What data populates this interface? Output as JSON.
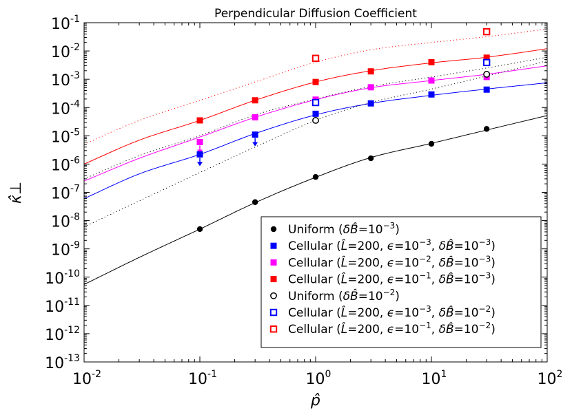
{
  "chart_data": {
    "type": "scatter",
    "title": "Perpendicular Diffusion Coefficient",
    "xlabel": "p̂",
    "ylabel": "κ̂⊥",
    "x_scale": "log",
    "y_scale": "log",
    "xlim": [
      0.01,
      100
    ],
    "ylim": [
      1e-13,
      0.1
    ],
    "x_ticks": [
      {
        "value": 0.01,
        "base": "10",
        "exp": "-2"
      },
      {
        "value": 0.1,
        "base": "10",
        "exp": "-1"
      },
      {
        "value": 1,
        "base": "10",
        "exp": "0"
      },
      {
        "value": 10,
        "base": "10",
        "exp": "1"
      },
      {
        "value": 100,
        "base": "10",
        "exp": "2"
      }
    ],
    "y_ticks": [
      {
        "value": 1e-13,
        "base": "10",
        "exp": "-13"
      },
      {
        "value": 1e-12,
        "base": "10",
        "exp": "-12"
      },
      {
        "value": 1e-11,
        "base": "10",
        "exp": "-11"
      },
      {
        "value": 1e-10,
        "base": "10",
        "exp": "-10"
      },
      {
        "value": 1e-09,
        "base": "10",
        "exp": "-9"
      },
      {
        "value": 1e-08,
        "base": "10",
        "exp": "-8"
      },
      {
        "value": 1e-07,
        "base": "10",
        "exp": "-7"
      },
      {
        "value": 1e-06,
        "base": "10",
        "exp": "-6"
      },
      {
        "value": 1e-05,
        "base": "10",
        "exp": "-5"
      },
      {
        "value": 0.0001,
        "base": "10",
        "exp": "-4"
      },
      {
        "value": 0.001,
        "base": "10",
        "exp": "-3"
      },
      {
        "value": 0.01,
        "base": "10",
        "exp": "-2"
      },
      {
        "value": 0.1,
        "base": "10",
        "exp": "-1"
      }
    ],
    "legend_position": "lower-right",
    "series": [
      {
        "name": "Uniform (δB̂=10⁻³)",
        "color": "#000000",
        "marker": "filled-circle",
        "x": [
          0.1,
          0.3,
          1,
          3,
          10,
          30
        ],
        "y": [
          5e-09,
          4.5e-08,
          3.5e-07,
          1.6e-06,
          5.2e-06,
          1.75e-05
        ]
      },
      {
        "name": "Cellular (L̂=200, ε=10⁻³, δB̂=10⁻³)",
        "color": "#0000ff",
        "marker": "filled-square",
        "x": [
          0.1,
          0.3,
          1,
          3,
          10,
          30
        ],
        "y": [
          2.2e-06,
          1.1e-05,
          6e-05,
          0.00014,
          0.00029,
          0.00043
        ]
      },
      {
        "name": "Cellular (L̂=200, ε=10⁻², δB̂=10⁻³)",
        "color": "#ff00ff",
        "marker": "filled-square",
        "x": [
          0.1,
          0.3,
          1,
          3,
          10,
          30
        ],
        "y": [
          6e-06,
          4.5e-05,
          0.00019,
          0.00052,
          0.0009,
          0.0012
        ]
      },
      {
        "name": "Cellular (L̂=200, ε=10⁻¹, δB̂=10⁻³)",
        "color": "#ff0000",
        "marker": "filled-square",
        "x": [
          0.1,
          0.3,
          1,
          3,
          10,
          30
        ],
        "y": [
          3.5e-05,
          0.00018,
          0.0008,
          0.0019,
          0.004,
          0.0058
        ]
      },
      {
        "name": "Uniform (δB̂=10⁻²)",
        "color": "#000000",
        "marker": "open-circle",
        "x": [
          1,
          30
        ],
        "y": [
          3.5e-05,
          0.0015
        ]
      },
      {
        "name": "Cellular (L̂=200, ε=10⁻³, δB̂=10⁻²)",
        "color": "#0000ff",
        "marker": "open-square",
        "x": [
          1,
          30
        ],
        "y": [
          0.00015,
          0.0039
        ]
      },
      {
        "name": "Cellular (L̂=200, ε=10⁻¹, δB̂=10⁻²)",
        "color": "#ff0000",
        "marker": "open-square",
        "x": [
          1,
          30
        ],
        "y": [
          0.0055,
          0.048
        ]
      }
    ],
    "fit_curves": [
      {
        "name": "uniform-1e-3-fit",
        "color": "#000000",
        "style": "solid",
        "x": [
          0.01,
          0.03,
          0.1,
          0.3,
          1,
          3,
          10,
          30,
          100
        ],
        "y": [
          5.5e-11,
          5e-10,
          5e-09,
          4.3e-08,
          3.4e-07,
          1.7e-06,
          5.4e-06,
          1.6e-05,
          5.2e-05
        ]
      },
      {
        "name": "cellular-e3-b3-fit",
        "color": "#0000ff",
        "style": "solid",
        "x": [
          0.01,
          0.03,
          0.1,
          0.3,
          1,
          3,
          10,
          30,
          100
        ],
        "y": [
          6e-08,
          4.5e-07,
          2.2e-06,
          1.2e-05,
          5.5e-05,
          0.00014,
          0.00027,
          0.00045,
          0.00075
        ]
      },
      {
        "name": "cellular-e2-b3-fit",
        "color": "#ff00ff",
        "style": "solid",
        "x": [
          0.01,
          0.03,
          0.1,
          0.3,
          1,
          3,
          10,
          30,
          100
        ],
        "y": [
          2.5e-07,
          1.6e-06,
          9e-06,
          4.5e-05,
          0.00019,
          0.0005,
          0.0009,
          0.0015,
          0.003
        ]
      },
      {
        "name": "cellular-e1-b3-fit",
        "color": "#ff0000",
        "style": "solid",
        "x": [
          0.01,
          0.03,
          0.1,
          0.3,
          1,
          3,
          10,
          30,
          100
        ],
        "y": [
          1e-06,
          7e-06,
          3.5e-05,
          0.00018,
          0.0008,
          0.002,
          0.0038,
          0.006,
          0.012
        ]
      },
      {
        "name": "uniform-1e-2-fit",
        "color": "#000000",
        "style": "dotted",
        "x": [
          0.01,
          0.03,
          0.1,
          0.3,
          1,
          3,
          10,
          30,
          100
        ],
        "y": [
          6e-09,
          5e-08,
          5e-07,
          4e-06,
          3.5e-05,
          0.00015,
          0.00045,
          0.0013,
          0.0045
        ]
      },
      {
        "name": "cellular-e3-b2-fit",
        "color": "#000000",
        "style": "dotted",
        "x": [
          0.01,
          0.03,
          0.1,
          0.3,
          1,
          3,
          10,
          30,
          100
        ],
        "y": [
          3e-07,
          2e-06,
          1e-05,
          5.5e-05,
          0.0002,
          0.00055,
          0.0012,
          0.0025,
          0.006
        ]
      },
      {
        "name": "cellular-e1-b2-fit",
        "color": "#ff0000",
        "style": "dotted",
        "x": [
          0.01,
          0.03,
          0.1,
          0.3,
          1,
          3,
          10,
          30,
          100
        ],
        "y": [
          5e-06,
          3.5e-05,
          0.00018,
          0.0008,
          0.004,
          0.011,
          0.02,
          0.032,
          0.06
        ]
      }
    ],
    "upper_limit_arrows": [
      {
        "color": "#0000ff",
        "x": 0.1,
        "y": 2.2e-06
      },
      {
        "color": "#0000ff",
        "x": 0.3,
        "y": 1.1e-05
      },
      {
        "color": "#ff00ff",
        "x": 0.1,
        "y": 6e-06
      }
    ],
    "legend": [
      {
        "marker": "filled-circle",
        "color": "#000000",
        "prefix": "Uniform (",
        "parts": [
          [
            "i",
            "δ"
          ],
          [
            "i",
            "B̂"
          ],
          [
            "n",
            "="
          ],
          [
            "n",
            "10"
          ],
          [
            "s",
            "−3"
          ],
          [
            "n",
            ")"
          ]
        ]
      },
      {
        "marker": "filled-square",
        "color": "#0000ff",
        "prefix": "Cellular (",
        "parts": [
          [
            "i",
            "L̂"
          ],
          [
            "n",
            "=200, "
          ],
          [
            "i",
            "ϵ"
          ],
          [
            "n",
            "="
          ],
          [
            "n",
            "10"
          ],
          [
            "s",
            "−3"
          ],
          [
            "n",
            ", "
          ],
          [
            "i",
            "δ"
          ],
          [
            "i",
            "B̂"
          ],
          [
            "n",
            "="
          ],
          [
            "n",
            "10"
          ],
          [
            "s",
            "−3"
          ],
          [
            "n",
            ")"
          ]
        ]
      },
      {
        "marker": "filled-square",
        "color": "#ff00ff",
        "prefix": "Cellular (",
        "parts": [
          [
            "i",
            "L̂"
          ],
          [
            "n",
            "=200, "
          ],
          [
            "i",
            "ϵ"
          ],
          [
            "n",
            "="
          ],
          [
            "n",
            "10"
          ],
          [
            "s",
            "−2"
          ],
          [
            "n",
            ", "
          ],
          [
            "i",
            "δ"
          ],
          [
            "i",
            "B̂"
          ],
          [
            "n",
            "="
          ],
          [
            "n",
            "10"
          ],
          [
            "s",
            "−3"
          ],
          [
            "n",
            ")"
          ]
        ]
      },
      {
        "marker": "filled-square",
        "color": "#ff0000",
        "prefix": "Cellular (",
        "parts": [
          [
            "i",
            "L̂"
          ],
          [
            "n",
            "=200, "
          ],
          [
            "i",
            "ϵ"
          ],
          [
            "n",
            "="
          ],
          [
            "n",
            "10"
          ],
          [
            "s",
            "−1"
          ],
          [
            "n",
            ", "
          ],
          [
            "i",
            "δ"
          ],
          [
            "i",
            "B̂"
          ],
          [
            "n",
            "="
          ],
          [
            "n",
            "10"
          ],
          [
            "s",
            "−3"
          ],
          [
            "n",
            ")"
          ]
        ]
      },
      {
        "marker": "open-circle",
        "color": "#000000",
        "prefix": "Uniform (",
        "parts": [
          [
            "i",
            "δ"
          ],
          [
            "i",
            "B̂"
          ],
          [
            "n",
            "="
          ],
          [
            "n",
            "10"
          ],
          [
            "s",
            "−2"
          ],
          [
            "n",
            ")"
          ]
        ]
      },
      {
        "marker": "open-square",
        "color": "#0000ff",
        "prefix": "Cellular (",
        "parts": [
          [
            "i",
            "L̂"
          ],
          [
            "n",
            "=200, "
          ],
          [
            "i",
            "ϵ"
          ],
          [
            "n",
            "="
          ],
          [
            "n",
            "10"
          ],
          [
            "s",
            "−3"
          ],
          [
            "n",
            ", "
          ],
          [
            "i",
            "δ"
          ],
          [
            "i",
            "B̂"
          ],
          [
            "n",
            "="
          ],
          [
            "n",
            "10"
          ],
          [
            "s",
            "−2"
          ],
          [
            "n",
            ")"
          ]
        ]
      },
      {
        "marker": "open-square",
        "color": "#ff0000",
        "prefix": "Cellular (",
        "parts": [
          [
            "i",
            "L̂"
          ],
          [
            "n",
            "=200, "
          ],
          [
            "i",
            "ϵ"
          ],
          [
            "n",
            "="
          ],
          [
            "n",
            "10"
          ],
          [
            "s",
            "−1"
          ],
          [
            "n",
            ", "
          ],
          [
            "i",
            "δ"
          ],
          [
            "i",
            "B̂"
          ],
          [
            "n",
            "="
          ],
          [
            "n",
            "10"
          ],
          [
            "s",
            "−2"
          ],
          [
            "n",
            ")"
          ]
        ]
      }
    ]
  }
}
